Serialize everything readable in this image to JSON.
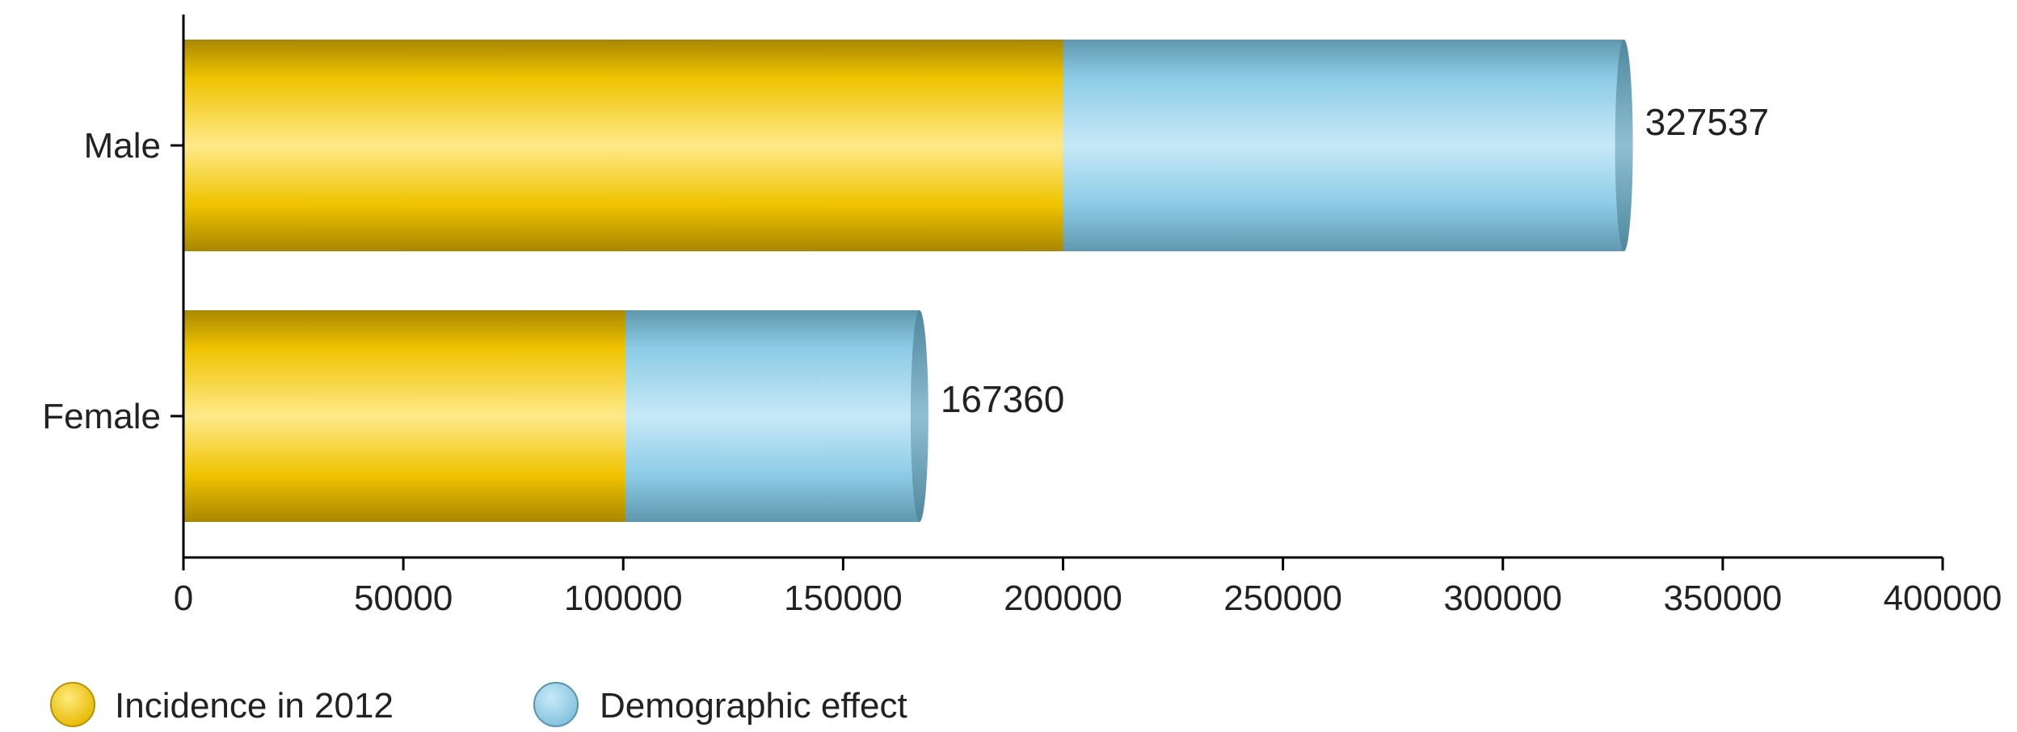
{
  "chart_data": {
    "type": "bar",
    "orientation": "horizontal",
    "stacked": true,
    "categories": [
      "Male",
      "Female"
    ],
    "series": [
      {
        "name": "Incidence in 2012",
        "values": [
          200000,
          100500
        ],
        "color": "#f5c800"
      },
      {
        "name": "Demographic effect",
        "values": [
          127537,
          66860
        ],
        "color": "#8ccbe6"
      }
    ],
    "totals": [
      "327537",
      "167360"
    ],
    "xlim": [
      0,
      400000
    ],
    "x_ticks": [
      "0",
      "50000",
      "100000",
      "150000",
      "200000",
      "250000",
      "300000",
      "350000",
      "400000"
    ],
    "x_tick_values": [
      0,
      50000,
      100000,
      150000,
      200000,
      250000,
      300000,
      350000,
      400000
    ],
    "title": "",
    "xlabel": "",
    "ylabel": "",
    "grid": false,
    "legend_position": "bottom-left"
  },
  "colors": {
    "yellow": "#f5c800",
    "yellow_dark": "#b89400",
    "blue": "#8ccbe6",
    "blue_dark": "#5a93aa",
    "axis": "#000000"
  }
}
